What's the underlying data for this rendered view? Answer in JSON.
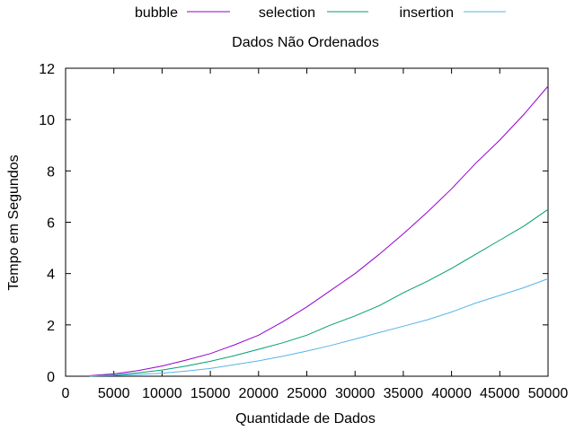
{
  "chart_data": {
    "type": "line",
    "title": "Dados Não Ordenados",
    "xlabel": "Quantidade de Dados",
    "ylabel": "Tempo em Segundos",
    "xlim": [
      0,
      50000
    ],
    "ylim": [
      0,
      12
    ],
    "xticks": [
      0,
      5000,
      10000,
      15000,
      20000,
      25000,
      30000,
      35000,
      40000,
      45000,
      50000
    ],
    "yticks": [
      0,
      2,
      4,
      6,
      8,
      10,
      12
    ],
    "grid": false,
    "legend_position": "top",
    "x": [
      2500,
      5000,
      7500,
      10000,
      12500,
      15000,
      17500,
      20000,
      22500,
      25000,
      27500,
      30000,
      32500,
      35000,
      37500,
      40000,
      42500,
      45000,
      47500,
      50000
    ],
    "series": [
      {
        "name": "bubble",
        "color": "#9400d3",
        "values": [
          0.02,
          0.09,
          0.22,
          0.4,
          0.63,
          0.88,
          1.22,
          1.6,
          2.12,
          2.7,
          3.35,
          4.0,
          4.75,
          5.55,
          6.4,
          7.3,
          8.3,
          9.2,
          10.2,
          11.3
        ]
      },
      {
        "name": "selection",
        "color": "#009e73",
        "values": [
          0.01,
          0.05,
          0.13,
          0.24,
          0.4,
          0.58,
          0.8,
          1.05,
          1.3,
          1.6,
          2.0,
          2.35,
          2.75,
          3.25,
          3.7,
          4.2,
          4.75,
          5.3,
          5.85,
          6.5
        ]
      },
      {
        "name": "insertion",
        "color": "#56b4e9",
        "values": [
          0.01,
          0.03,
          0.07,
          0.12,
          0.2,
          0.3,
          0.45,
          0.6,
          0.78,
          0.98,
          1.2,
          1.45,
          1.7,
          1.95,
          2.2,
          2.5,
          2.85,
          3.15,
          3.45,
          3.8
        ]
      }
    ]
  }
}
